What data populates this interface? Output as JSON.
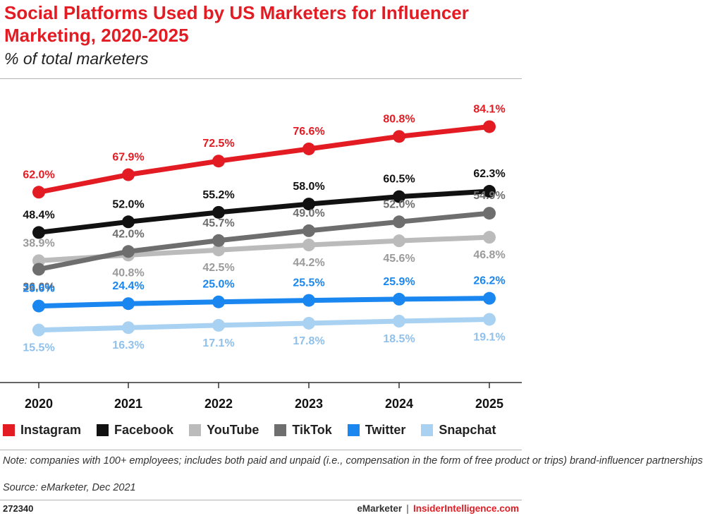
{
  "chart_data": {
    "type": "line",
    "title": "Social Platforms Used by US Marketers for Influencer Marketing, 2020-2025",
    "subtitle": "% of total marketers",
    "categories": [
      "2020",
      "2021",
      "2022",
      "2023",
      "2024",
      "2025"
    ],
    "ylim": [
      0,
      100
    ],
    "grid": false,
    "legend_position": "bottom",
    "series": [
      {
        "name": "Instagram",
        "color": "#e31b23",
        "values": [
          62.0,
          67.9,
          72.5,
          76.6,
          80.8,
          84.1
        ],
        "labels": [
          "62.0%",
          "67.9%",
          "72.5%",
          "76.6%",
          "80.8%",
          "84.1%"
        ]
      },
      {
        "name": "Facebook",
        "color": "#111111",
        "values": [
          48.4,
          52.0,
          55.2,
          58.0,
          60.5,
          62.3
        ],
        "labels": [
          "48.4%",
          "52.0%",
          "55.2%",
          "58.0%",
          "60.5%",
          "62.3%"
        ]
      },
      {
        "name": "YouTube",
        "color": "#bbbbbb",
        "values": [
          38.9,
          40.8,
          42.5,
          44.2,
          45.6,
          46.8
        ],
        "labels": [
          "38.9%",
          "40.8%",
          "42.5%",
          "44.2%",
          "45.6%",
          "46.8%"
        ]
      },
      {
        "name": "TikTok",
        "color": "#6e6e6e",
        "values": [
          36.0,
          42.0,
          45.7,
          49.0,
          52.0,
          54.9
        ],
        "labels": [
          "36.0%",
          "42.0%",
          "45.7%",
          "49.0%",
          "52.0%",
          "54.9%"
        ]
      },
      {
        "name": "Twitter",
        "color": "#1a86f0",
        "values": [
          23.6,
          24.4,
          25.0,
          25.5,
          25.9,
          26.2
        ],
        "labels": [
          "23.6%",
          "24.4%",
          "25.0%",
          "25.5%",
          "25.9%",
          "26.2%"
        ]
      },
      {
        "name": "Snapchat",
        "color": "#a9d1f2",
        "values": [
          15.5,
          16.3,
          17.1,
          17.8,
          18.5,
          19.1
        ],
        "labels": [
          "15.5%",
          "16.3%",
          "17.1%",
          "17.8%",
          "18.5%",
          "19.1%"
        ]
      }
    ]
  },
  "header": {
    "title": "Social Platforms Used by US Marketers for Influencer Marketing, 2020-2025",
    "subtitle": "% of total marketers"
  },
  "legend": [
    "Instagram",
    "Facebook",
    "YouTube",
    "TikTok",
    "Twitter",
    "Snapchat"
  ],
  "footer": {
    "note": "Note: companies with 100+ employees; includes both paid and unpaid (i.e., compensation in the form of free product or trips) brand-influencer partnerships",
    "source": "Source: eMarketer, Dec 2021",
    "chart_id": "272340",
    "brand_left": "eMarketer",
    "brand_sep": "|",
    "brand_right": "InsiderIntelligence.com"
  }
}
